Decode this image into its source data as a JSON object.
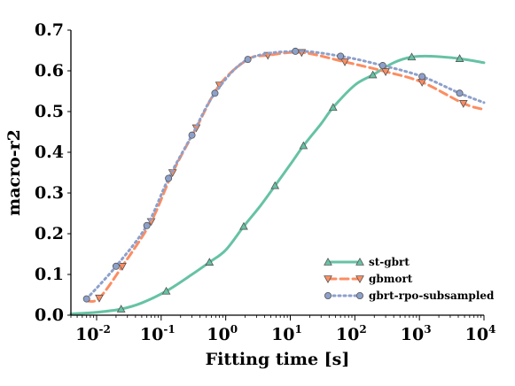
{
  "chart_data": {
    "type": "line",
    "title": "",
    "xlabel": "Fitting time [s]",
    "ylabel": "macro-r2",
    "xscale": "log",
    "xlim": [
      0.004,
      10000
    ],
    "ylim": [
      0.0,
      0.7
    ],
    "yticks": [
      "0.0",
      "0.1",
      "0.2",
      "0.3",
      "0.4",
      "0.5",
      "0.6",
      "0.7"
    ],
    "xticks": [
      {
        "base": "10",
        "exp": "-2",
        "value": 0.01
      },
      {
        "base": "10",
        "exp": "-1",
        "value": 0.1
      },
      {
        "base": "10",
        "exp": "0",
        "value": 1
      },
      {
        "base": "10",
        "exp": "1",
        "value": 10
      },
      {
        "base": "10",
        "exp": "2",
        "value": 100
      },
      {
        "base": "10",
        "exp": "3",
        "value": 1000
      },
      {
        "base": "10",
        "exp": "4",
        "value": 10000
      }
    ],
    "grid": false,
    "legend_position": "bottom-right",
    "series": [
      {
        "name": "st-gbrt",
        "color": "#66c2a5",
        "linestyle": "solid",
        "marker": "triangle-up",
        "curve": [
          [
            0.004,
            0.003
          ],
          [
            0.01,
            0.007
          ],
          [
            0.024,
            0.015
          ],
          [
            0.05,
            0.03
          ],
          [
            0.12,
            0.059
          ],
          [
            0.3,
            0.1
          ],
          [
            0.56,
            0.13
          ],
          [
            1.0,
            0.16
          ],
          [
            1.9,
            0.218
          ],
          [
            3.5,
            0.27
          ],
          [
            5.8,
            0.318
          ],
          [
            10.0,
            0.37
          ],
          [
            16.0,
            0.416
          ],
          [
            30.0,
            0.47
          ],
          [
            46.0,
            0.51
          ],
          [
            100.0,
            0.565
          ],
          [
            190.0,
            0.59
          ],
          [
            400.0,
            0.62
          ],
          [
            760.0,
            0.634
          ],
          [
            1500.0,
            0.636
          ],
          [
            4200.0,
            0.63
          ],
          [
            10000.0,
            0.62
          ]
        ],
        "points": [
          [
            0.024,
            0.015
          ],
          [
            0.12,
            0.059
          ],
          [
            0.56,
            0.13
          ],
          [
            1.9,
            0.218
          ],
          [
            5.8,
            0.318
          ],
          [
            16.0,
            0.416
          ],
          [
            46.0,
            0.51
          ],
          [
            190.0,
            0.59
          ],
          [
            760.0,
            0.634
          ],
          [
            4200.0,
            0.63
          ]
        ]
      },
      {
        "name": "gbmort",
        "color": "#fc8d62",
        "linestyle": "dashed",
        "marker": "triangle-down",
        "curve": [
          [
            0.007,
            0.035
          ],
          [
            0.011,
            0.042
          ],
          [
            0.025,
            0.12
          ],
          [
            0.07,
            0.23
          ],
          [
            0.15,
            0.35
          ],
          [
            0.35,
            0.46
          ],
          [
            0.8,
            0.565
          ],
          [
            2.2,
            0.628
          ],
          [
            4.5,
            0.638
          ],
          [
            15.0,
            0.645
          ],
          [
            70.0,
            0.622
          ],
          [
            300.0,
            0.598
          ],
          [
            1100.0,
            0.572
          ],
          [
            4800.0,
            0.52
          ],
          [
            10000.0,
            0.505
          ]
        ],
        "points": [
          [
            0.011,
            0.042
          ],
          [
            0.025,
            0.12
          ],
          [
            0.07,
            0.23
          ],
          [
            0.15,
            0.35
          ],
          [
            0.35,
            0.46
          ],
          [
            0.8,
            0.565
          ],
          [
            4.5,
            0.638
          ],
          [
            15.0,
            0.645
          ],
          [
            70.0,
            0.622
          ],
          [
            300.0,
            0.598
          ],
          [
            1100.0,
            0.572
          ],
          [
            4800.0,
            0.52
          ]
        ]
      },
      {
        "name": "gbrt-rpo-subsampled",
        "color": "#8da0cb",
        "linestyle": "dotted",
        "marker": "circle",
        "curve": [
          [
            0.007,
            0.04
          ],
          [
            0.02,
            0.12
          ],
          [
            0.06,
            0.22
          ],
          [
            0.13,
            0.336
          ],
          [
            0.3,
            0.442
          ],
          [
            0.68,
            0.545
          ],
          [
            2.2,
            0.628
          ],
          [
            12.0,
            0.648
          ],
          [
            60.0,
            0.636
          ],
          [
            270.0,
            0.613
          ],
          [
            1100.0,
            0.586
          ],
          [
            4200.0,
            0.545
          ],
          [
            10000.0,
            0.522
          ]
        ],
        "points": [
          [
            0.007,
            0.04
          ],
          [
            0.02,
            0.12
          ],
          [
            0.06,
            0.22
          ],
          [
            0.13,
            0.336
          ],
          [
            0.3,
            0.442
          ],
          [
            0.68,
            0.545
          ],
          [
            2.2,
            0.628
          ],
          [
            12.0,
            0.648
          ],
          [
            60.0,
            0.636
          ],
          [
            270.0,
            0.613
          ],
          [
            1100.0,
            0.586
          ],
          [
            4200.0,
            0.545
          ]
        ]
      }
    ]
  }
}
